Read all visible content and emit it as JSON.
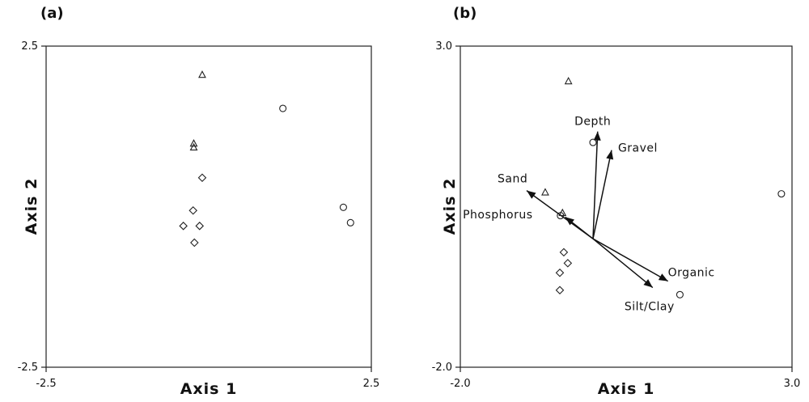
{
  "chart_data": [
    {
      "panel": "(a)",
      "type": "scatter",
      "xlabel": "Axis 1",
      "ylabel": "Axis 2",
      "xlim": [
        -2.5,
        2.5
      ],
      "ylim": [
        -2.5,
        2.5
      ],
      "x_ticks": [
        "-2.5",
        "2.5"
      ],
      "y_ticks": [
        "2.5",
        "-2.5"
      ],
      "grid": false,
      "series": [
        {
          "marker": "triangle",
          "points": [
            [
              -0.1,
              2.05
            ],
            [
              -0.23,
              0.98
            ],
            [
              -0.23,
              0.92
            ]
          ]
        },
        {
          "marker": "circle",
          "points": [
            [
              1.14,
              1.53
            ],
            [
              2.07,
              -0.01
            ],
            [
              2.18,
              -0.25
            ]
          ]
        },
        {
          "marker": "diamond",
          "points": [
            [
              -0.1,
              0.45
            ],
            [
              -0.24,
              -0.06
            ],
            [
              -0.39,
              -0.3
            ],
            [
              -0.14,
              -0.3
            ],
            [
              -0.22,
              -0.56
            ]
          ]
        }
      ]
    },
    {
      "panel": "(b)",
      "type": "scatter",
      "xlabel": "Axis 1",
      "ylabel": "Axis 2",
      "xlim": [
        -2.0,
        3.0
      ],
      "ylim": [
        -2.0,
        3.0
      ],
      "x_ticks": [
        "-2.0",
        "3.0"
      ],
      "y_ticks": [
        "3.0",
        "-2.0"
      ],
      "grid": false,
      "series": [
        {
          "marker": "triangle",
          "points": [
            [
              -0.72,
              0.72
            ],
            [
              -0.37,
              2.45
            ],
            [
              -0.46,
              0.4
            ]
          ]
        },
        {
          "marker": "circle",
          "points": [
            [
              0.0,
              1.5
            ],
            [
              1.31,
              -0.87
            ],
            [
              2.84,
              0.7
            ],
            [
              -0.49,
              0.36
            ]
          ]
        },
        {
          "marker": "diamond",
          "points": [
            [
              -0.44,
              -0.21
            ],
            [
              -0.38,
              -0.38
            ],
            [
              -0.5,
              -0.53
            ],
            [
              -0.5,
              -0.8
            ]
          ]
        }
      ],
      "vectors": [
        {
          "label": "Depth",
          "end": [
            0.07,
            1.67
          ]
        },
        {
          "label": "Gravel",
          "end": [
            0.28,
            1.38
          ]
        },
        {
          "label": "Sand",
          "end": [
            -1.0,
            0.75
          ]
        },
        {
          "label": "Phosphorus",
          "end": [
            -0.42,
            0.34
          ]
        },
        {
          "label": "Organic",
          "end": [
            1.13,
            -0.66
          ]
        },
        {
          "label": "Silt/Clay",
          "end": [
            0.9,
            -0.76
          ]
        }
      ]
    }
  ]
}
